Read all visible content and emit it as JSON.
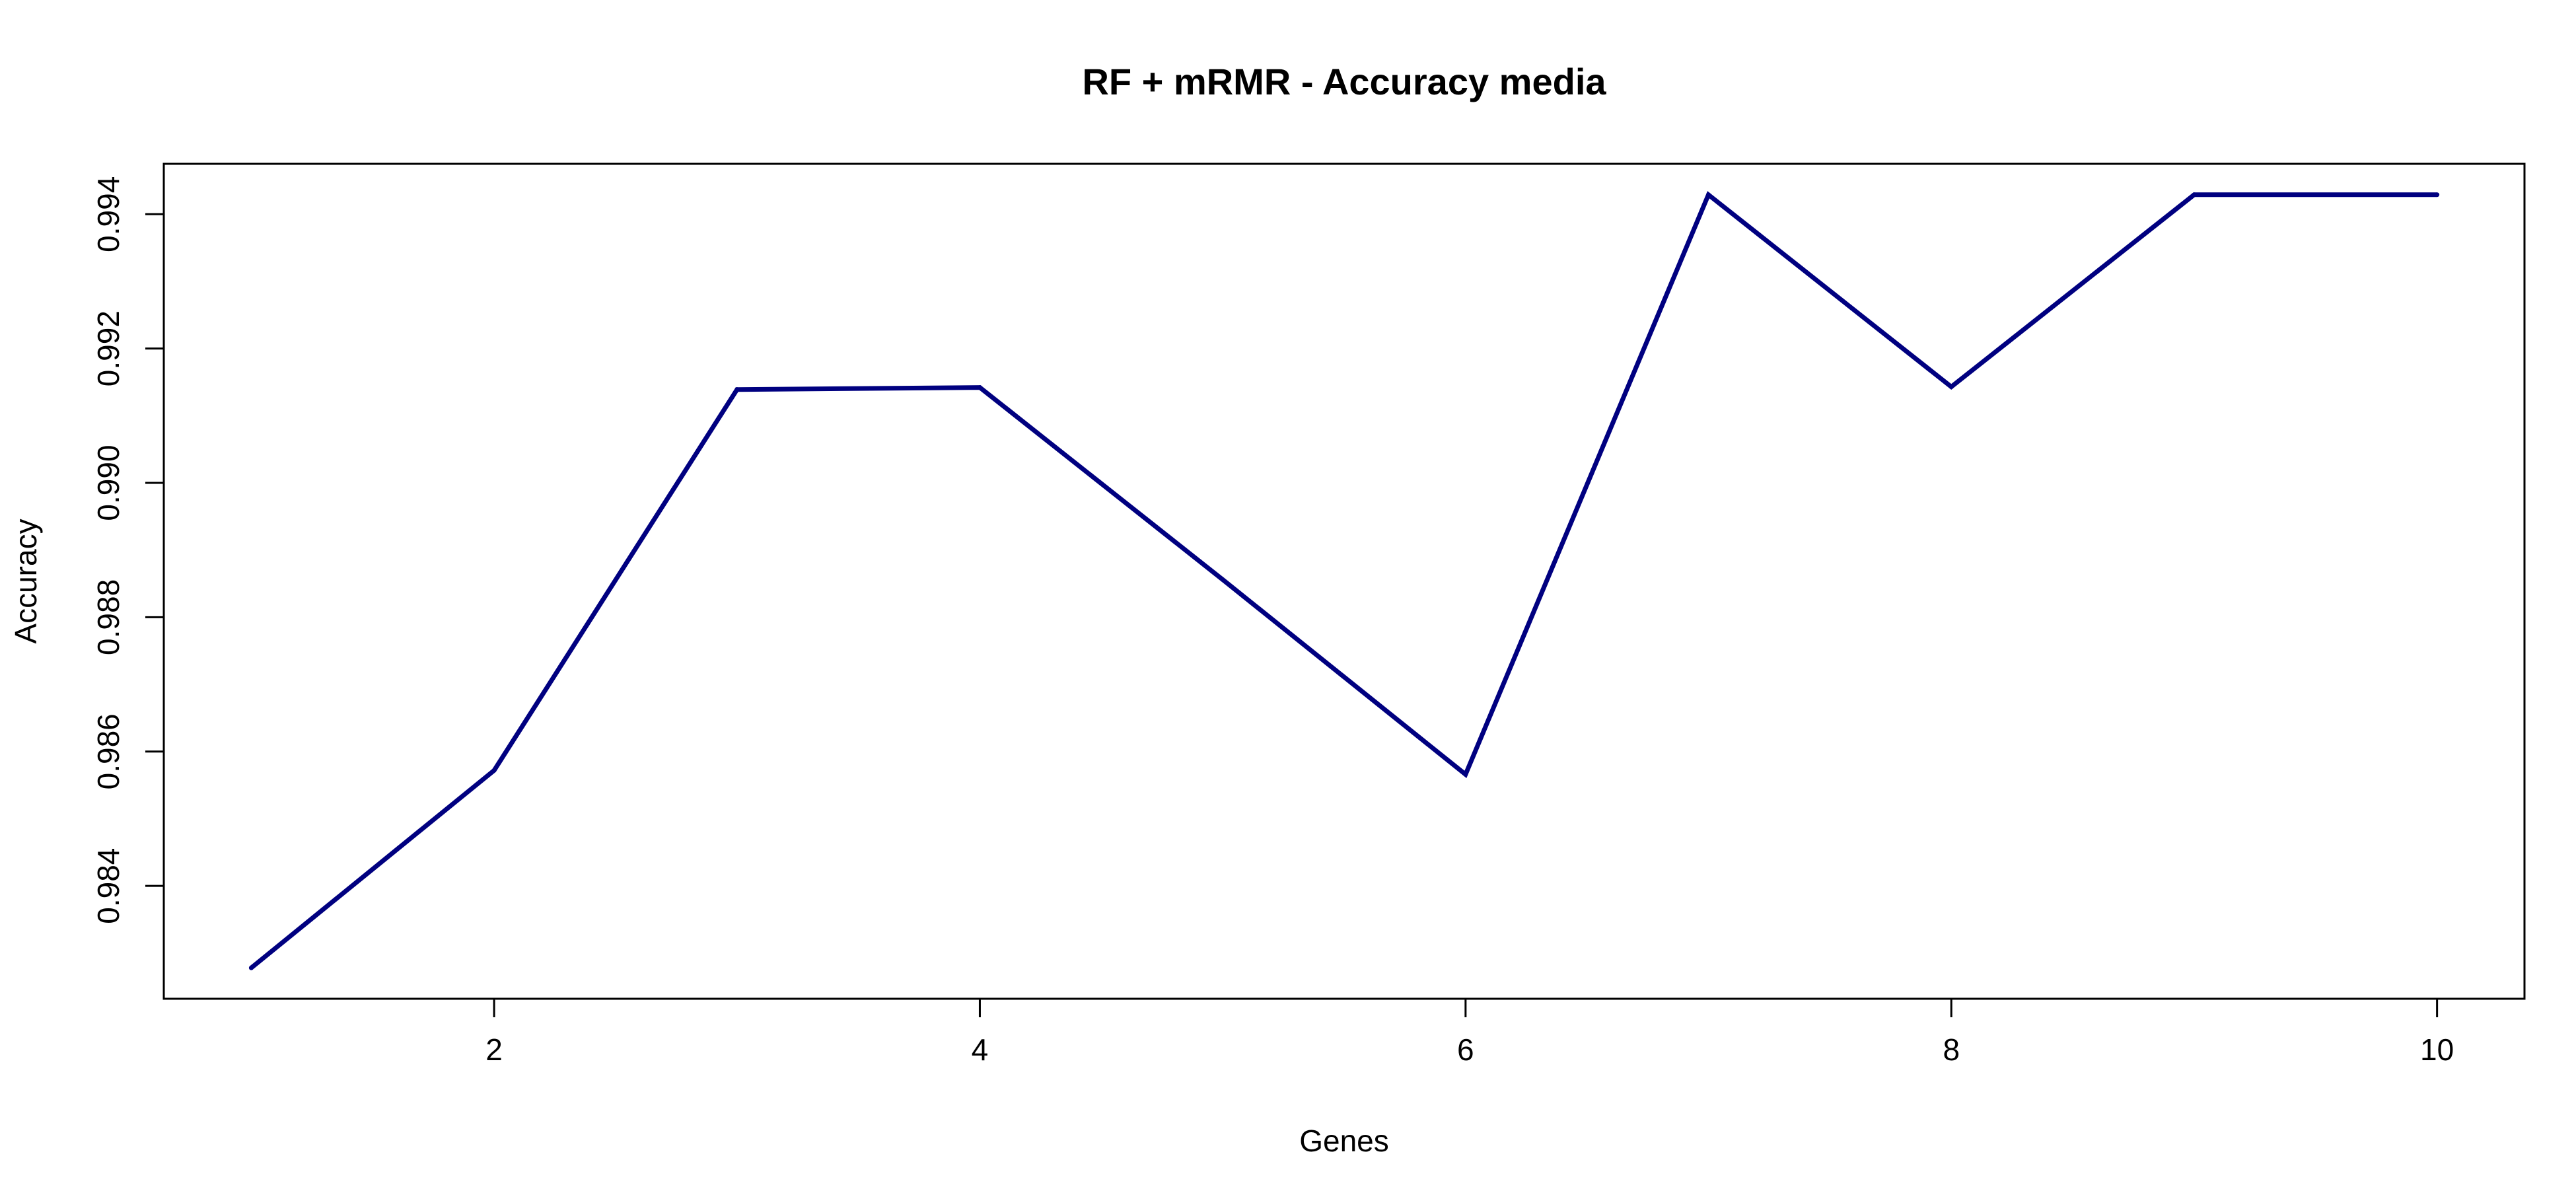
{
  "chart_data": {
    "type": "line",
    "title": "RF + mRMR - Accuracy media",
    "xlabel": "Genes",
    "ylabel": "Accuracy",
    "x": [
      1,
      2,
      3,
      4,
      5,
      6,
      7,
      8,
      9,
      10
    ],
    "series": [
      {
        "color": "#000080",
        "values": [
          0.98278,
          0.98572,
          0.99139,
          0.99142,
          0.98856,
          0.98566,
          0.99429,
          0.99143,
          0.99429,
          0.99429
        ]
      }
    ],
    "xlim": [
      0.64,
      10.36
    ],
    "ylim": [
      0.98232,
      0.99475
    ],
    "xticks": [
      2,
      4,
      6,
      8,
      10
    ],
    "xtick_labels": [
      "2",
      "4",
      "6",
      "8",
      "10"
    ],
    "yticks": [
      0.984,
      0.986,
      0.988,
      0.99,
      0.992,
      0.994
    ],
    "ytick_labels": [
      "0.984",
      "0.986",
      "0.988",
      "0.990",
      "0.992",
      "0.994"
    ],
    "grid": false,
    "legend": "none",
    "box": true
  }
}
